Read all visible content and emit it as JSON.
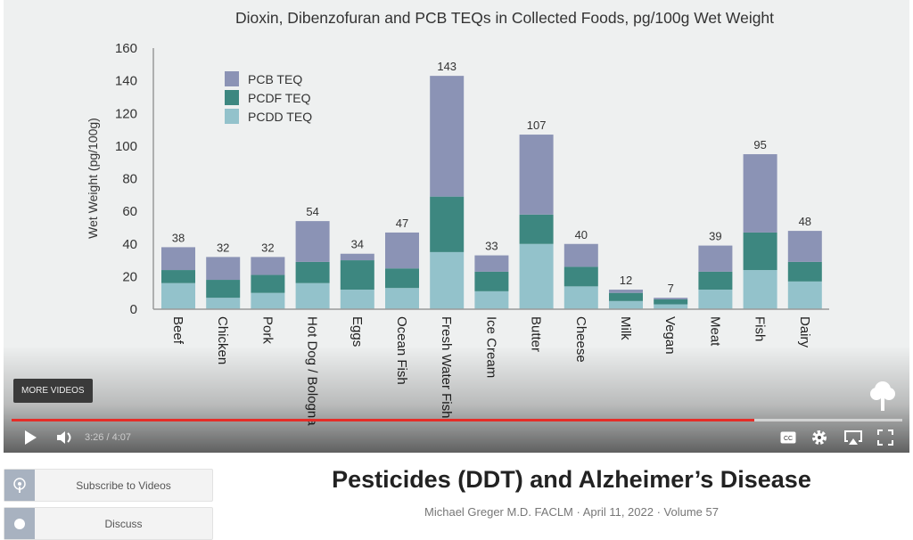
{
  "video": {
    "more_videos_label": "MORE VIDEOS",
    "current_time": "3:26",
    "duration": "4:07",
    "time_separator": " / ",
    "progress_fraction": 0.834,
    "icons": [
      "play-icon",
      "volume-icon",
      "cc-icon",
      "gear-icon",
      "airplay-icon",
      "fullscreen-icon",
      "tree-logo-icon"
    ]
  },
  "chart_data": {
    "type": "bar",
    "stacked": true,
    "title": "Dioxin, Dibenzofuran and PCB TEQs in Collected Foods, pg/100g Wet Weight",
    "xlabel": "",
    "ylabel": "Wet Weight (pg/100g)",
    "ylim": [
      0,
      160
    ],
    "yticks": [
      0,
      20,
      40,
      60,
      80,
      100,
      120,
      140,
      160
    ],
    "legend_position": "top-left",
    "categories": [
      "Beef",
      "Chicken",
      "Pork",
      "Hot Dog / Bologna",
      "Eggs",
      "Ocean Fish",
      "Fresh Water Fish",
      "Ice Cream",
      "Butter",
      "Cheese",
      "Milk",
      "Vegan",
      "Meat",
      "Fish",
      "Dairy"
    ],
    "series": [
      {
        "name": "PCDD TEQ",
        "color": "#93c2cb",
        "values": [
          16,
          7,
          10,
          16,
          12,
          13,
          35,
          11,
          40,
          14,
          5,
          3,
          12,
          24,
          17
        ]
      },
      {
        "name": "PCDF TEQ",
        "color": "#3d8780",
        "values": [
          8,
          11,
          11,
          13,
          18,
          12,
          34,
          12,
          18,
          12,
          5,
          3,
          11,
          23,
          12
        ]
      },
      {
        "name": "PCB TEQ",
        "color": "#8b93b5",
        "values": [
          14,
          14,
          11,
          25,
          4,
          22,
          74,
          10,
          49,
          14,
          2,
          1,
          16,
          48,
          19
        ]
      }
    ],
    "legend_order": [
      "PCB TEQ",
      "PCDF TEQ",
      "PCDD TEQ"
    ],
    "totals": [
      38,
      32,
      32,
      54,
      34,
      47,
      143,
      33,
      107,
      40,
      12,
      7,
      39,
      95,
      48
    ]
  },
  "page": {
    "subscribe_label": "Subscribe to Videos",
    "discuss_label": "Discuss",
    "title": "Pesticides (DDT) and Alzheimer’s Disease",
    "meta": "Michael Greger M.D. FACLM · April 11, 2022 · Volume 57"
  }
}
